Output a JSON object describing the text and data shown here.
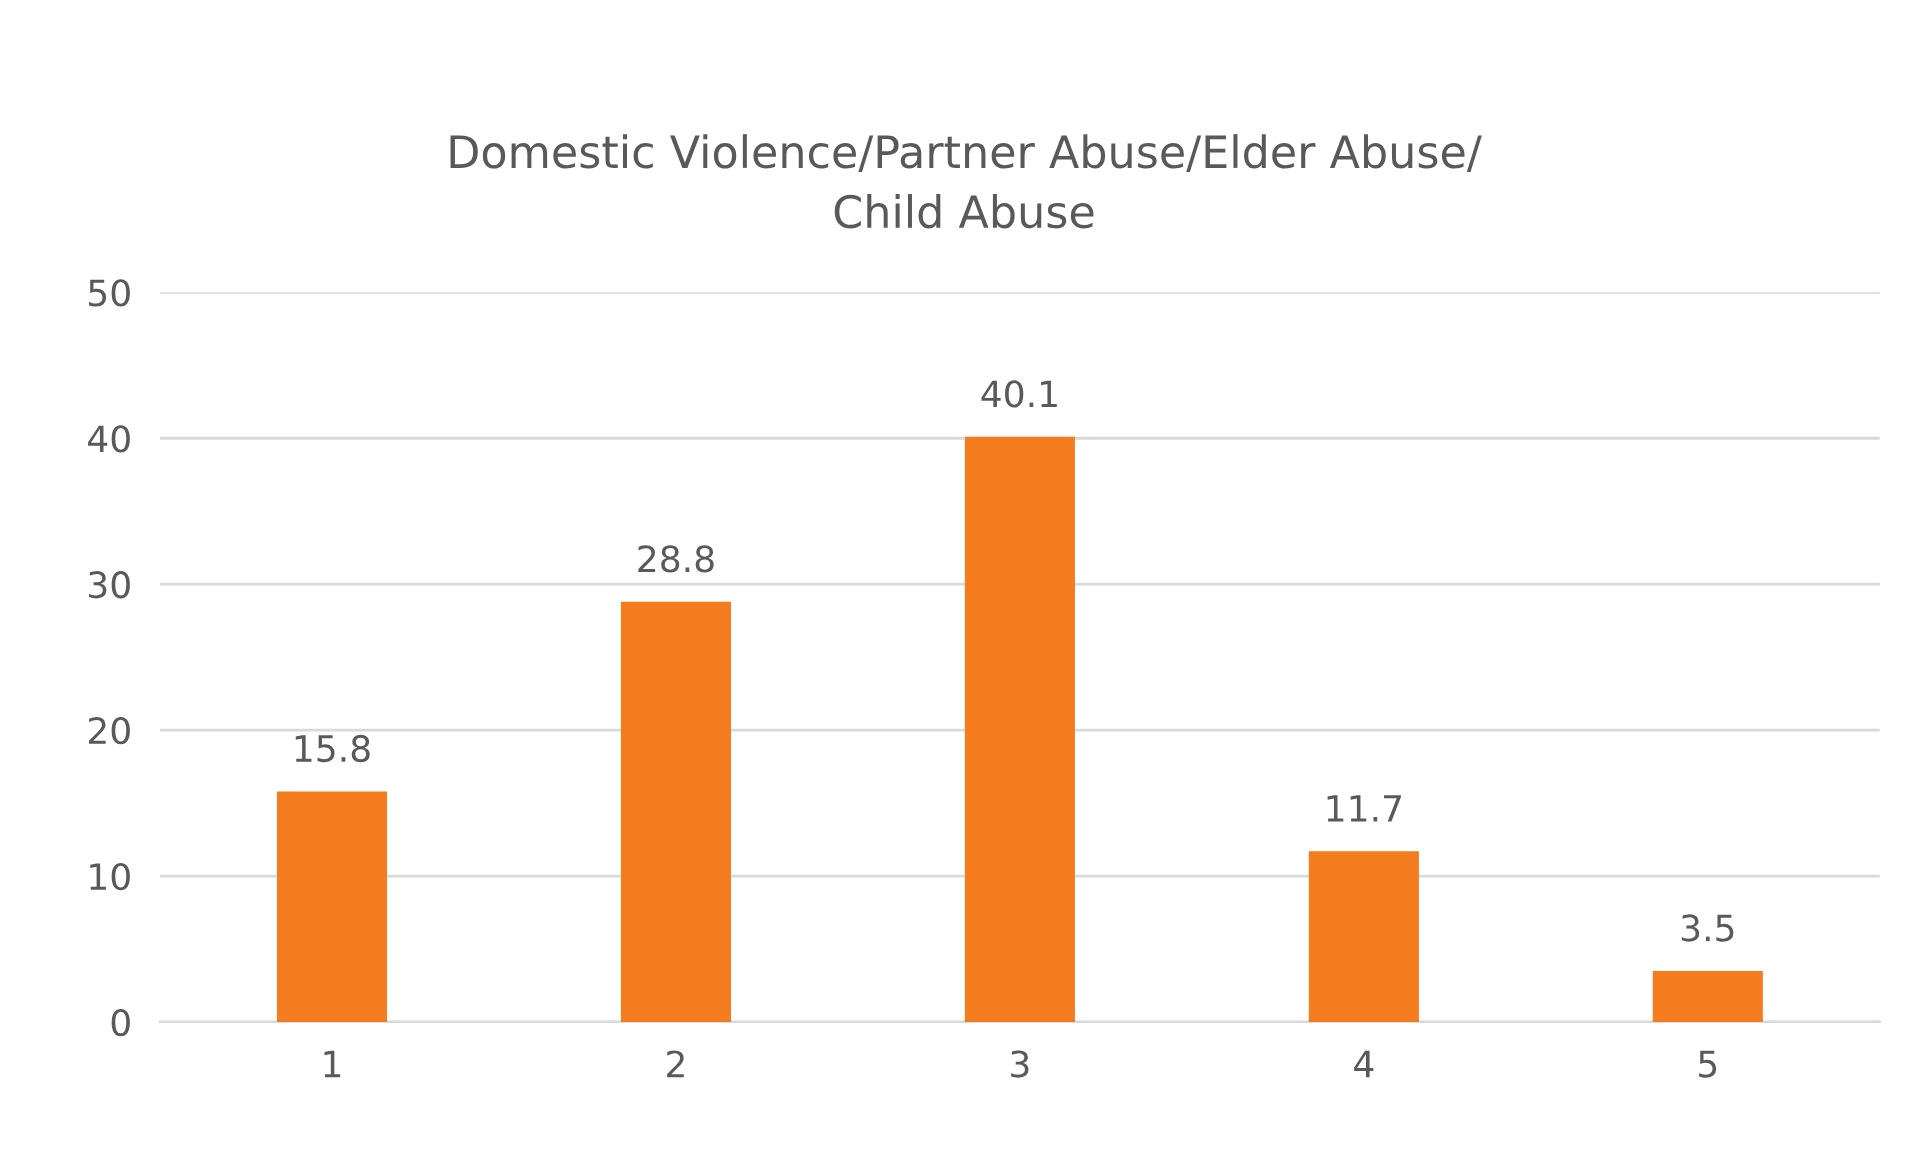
{
  "chart_data": {
    "type": "bar",
    "title": "Domestic Violence/Partner Abuse/Elder Abuse/\nChild Abuse",
    "categories": [
      "1",
      "2",
      "3",
      "4",
      "5"
    ],
    "values": [
      15.8,
      28.8,
      40.1,
      11.7,
      3.5
    ],
    "color": "#f47b1e",
    "ylim": [
      0,
      50
    ],
    "yticks": [
      0,
      10,
      20,
      30,
      40,
      50
    ],
    "grid": "y",
    "data_labels": true,
    "legend": false
  }
}
